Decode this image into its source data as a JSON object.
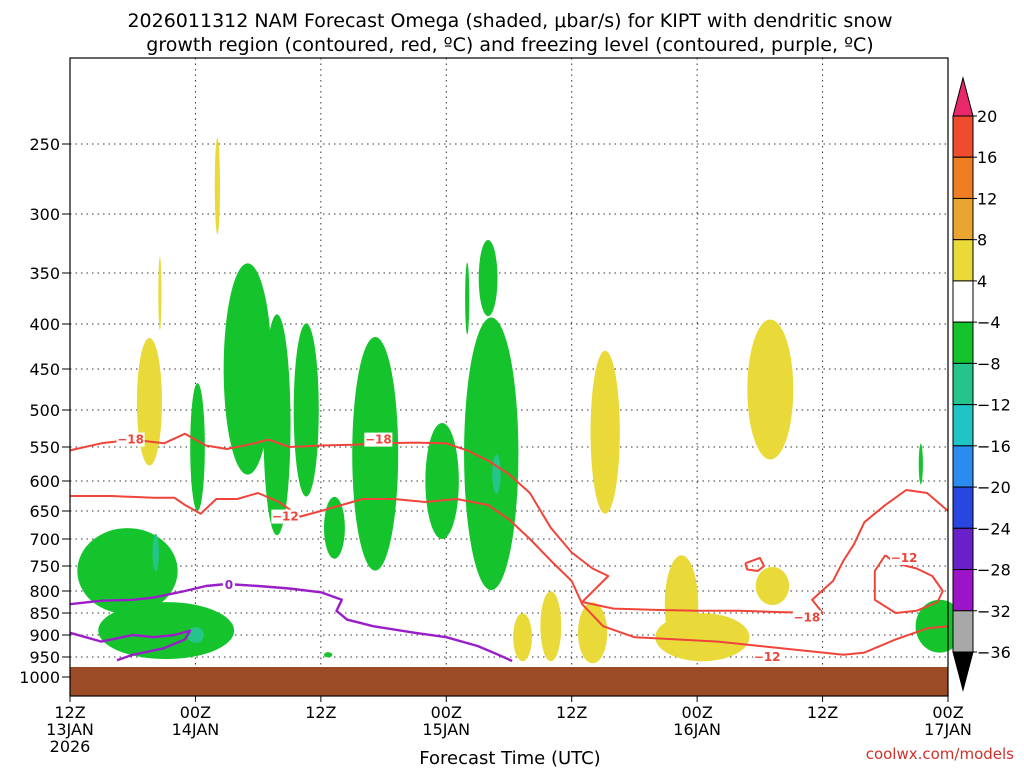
{
  "chart_data": {
    "type": "time-height cross-section",
    "title_line1": "2026011312 NAM Forecast Omega (shaded, μbar/s) for KIPT with dendritic snow",
    "title_line2": "growth region (contoured, red, ºC) and freezing level (contoured, purple, ºC)",
    "xlabel": "Forecast Time (UTC)",
    "credit": "coolwx.com/models",
    "y_ticks": [
      250,
      300,
      350,
      400,
      450,
      500,
      550,
      600,
      650,
      700,
      750,
      800,
      850,
      900,
      950,
      1000
    ],
    "ylim": [
      200,
      1000
    ],
    "x_ticks": [
      {
        "hour": 0,
        "lines": [
          "12Z",
          "13JAN",
          "2026"
        ]
      },
      {
        "hour": 12,
        "lines": [
          "00Z",
          "14JAN"
        ]
      },
      {
        "hour": 24,
        "lines": [
          "12Z"
        ]
      },
      {
        "hour": 36,
        "lines": [
          "00Z",
          "15JAN"
        ]
      },
      {
        "hour": 48,
        "lines": [
          "12Z"
        ]
      },
      {
        "hour": 60,
        "lines": [
          "00Z",
          "16JAN"
        ]
      },
      {
        "hour": 72,
        "lines": [
          "12Z"
        ]
      },
      {
        "hour": 84,
        "lines": [
          "00Z",
          "17JAN"
        ]
      }
    ],
    "xlim": [
      0,
      84
    ],
    "ground_pressure": 975,
    "ground_color": "#9b4c26",
    "colorbar": {
      "labels": [
        "20",
        "16",
        "12",
        "8",
        "4",
        "−4",
        "−8",
        "−12",
        "−16",
        "−20",
        "−24",
        "−28",
        "−32",
        "−36"
      ],
      "bins": [
        "#e8286a",
        "#ef4b2f",
        "#ef7d22",
        "#e8a531",
        "#e9da3a",
        "#ffffff",
        "#15c42d",
        "#25c48a",
        "#20c4c4",
        "#2a8cee",
        "#2846e0",
        "#6a20c8",
        "#9b14c8",
        "#a8a8a8",
        "#000000"
      ]
    },
    "omega_regions": [
      {
        "color": "#15c42d",
        "cx": 12.2,
        "cy": 550,
        "rx": 0.7,
        "ry": 90
      },
      {
        "color": "#15c42d",
        "cx": 17.0,
        "cy": 450,
        "rx": 2.3,
        "ry": 120
      },
      {
        "color": "#15c42d",
        "cx": 19.8,
        "cy": 520,
        "rx": 1.3,
        "ry": 145
      },
      {
        "color": "#15c42d",
        "cx": 22.6,
        "cy": 500,
        "rx": 1.2,
        "ry": 110
      },
      {
        "color": "#15c42d",
        "cx": 25.3,
        "cy": 680,
        "rx": 1.0,
        "ry": 55
      },
      {
        "color": "#15c42d",
        "cx": 29.2,
        "cy": 560,
        "rx": 2.2,
        "ry": 165
      },
      {
        "color": "#15c42d",
        "cx": 35.6,
        "cy": 600,
        "rx": 1.6,
        "ry": 90
      },
      {
        "color": "#15c42d",
        "cx": 40.3,
        "cy": 560,
        "rx": 2.6,
        "ry": 190
      },
      {
        "color": "#15c42d",
        "cx": 38.0,
        "cy": 375,
        "rx": 0.2,
        "ry": 35
      },
      {
        "color": "#15c42d",
        "cx": 40.0,
        "cy": 355,
        "rx": 0.9,
        "ry": 35
      },
      {
        "color": "#15c42d",
        "cx": 5.5,
        "cy": 760,
        "rx": 4.8,
        "ry": 85
      },
      {
        "color": "#15c42d",
        "cx": 9.2,
        "cy": 890,
        "rx": 6.5,
        "ry": 65
      },
      {
        "color": "#15c42d",
        "cx": 83.2,
        "cy": 880,
        "rx": 2.3,
        "ry": 60
      },
      {
        "color": "#15c42d",
        "cx": 81.4,
        "cy": 575,
        "rx": 0.2,
        "ry": 30
      },
      {
        "color": "#15c42d",
        "cx": 24.7,
        "cy": 945,
        "rx": 0.4,
        "ry": 6
      },
      {
        "color": "#25c48a",
        "cx": 8.2,
        "cy": 725,
        "rx": 0.3,
        "ry": 35
      },
      {
        "color": "#25c48a",
        "cx": 40.8,
        "cy": 590,
        "rx": 0.4,
        "ry": 30
      },
      {
        "color": "#25c48a",
        "cx": 12.0,
        "cy": 900,
        "rx": 0.8,
        "ry": 18
      },
      {
        "color": "#e9da3a",
        "cx": 7.6,
        "cy": 490,
        "rx": 1.2,
        "ry": 80
      },
      {
        "color": "#e9da3a",
        "cx": 8.6,
        "cy": 370,
        "rx": 0.15,
        "ry": 35
      },
      {
        "color": "#e9da3a",
        "cx": 14.1,
        "cy": 280,
        "rx": 0.25,
        "ry": 35
      },
      {
        "color": "#e9da3a",
        "cx": 51.2,
        "cy": 530,
        "rx": 1.4,
        "ry": 110
      },
      {
        "color": "#e9da3a",
        "cx": 67.0,
        "cy": 475,
        "rx": 2.2,
        "ry": 85
      },
      {
        "color": "#e9da3a",
        "cx": 43.3,
        "cy": 905,
        "rx": 0.9,
        "ry": 55
      },
      {
        "color": "#e9da3a",
        "cx": 46.0,
        "cy": 880,
        "rx": 1.0,
        "ry": 80
      },
      {
        "color": "#e9da3a",
        "cx": 50.0,
        "cy": 895,
        "rx": 1.4,
        "ry": 70
      },
      {
        "color": "#e9da3a",
        "cx": 58.5,
        "cy": 830,
        "rx": 1.6,
        "ry": 105
      },
      {
        "color": "#e9da3a",
        "cx": 60.5,
        "cy": 905,
        "rx": 4.5,
        "ry": 55
      },
      {
        "color": "#e9da3a",
        "cx": 67.2,
        "cy": 790,
        "rx": 1.6,
        "ry": 40
      }
    ],
    "red_isotherms": [
      {
        "label": "−18",
        "points": [
          [
            0,
            555
          ],
          [
            3,
            545
          ],
          [
            6,
            540
          ],
          [
            9,
            545
          ],
          [
            11,
            532
          ],
          [
            13,
            548
          ],
          [
            15,
            553
          ],
          [
            17,
            547
          ],
          [
            19,
            540
          ],
          [
            21,
            550
          ],
          [
            24,
            548
          ],
          [
            27,
            547
          ],
          [
            30,
            545
          ],
          [
            33,
            544
          ],
          [
            36,
            545
          ],
          [
            38,
            555
          ],
          [
            40,
            570
          ],
          [
            42,
            590
          ],
          [
            44,
            620
          ],
          [
            46,
            680
          ],
          [
            48,
            725
          ],
          [
            50,
            755
          ],
          [
            51.5,
            770
          ],
          [
            49,
            825
          ],
          [
            52,
            840
          ],
          [
            56,
            843
          ],
          [
            60,
            845
          ],
          [
            64,
            845
          ],
          [
            68,
            848
          ],
          [
            72,
            850
          ]
        ],
        "label_at": [
          5.8,
          540
        ]
      },
      {
        "label": "−12",
        "points": [
          [
            0,
            625
          ],
          [
            4,
            625
          ],
          [
            8,
            628
          ],
          [
            10,
            628
          ],
          [
            11,
            640
          ],
          [
            12.5,
            655
          ],
          [
            14,
            630
          ],
          [
            16,
            630
          ],
          [
            18,
            620
          ],
          [
            20,
            635
          ],
          [
            22,
            660
          ],
          [
            24,
            650
          ],
          [
            26,
            640
          ],
          [
            28,
            630
          ],
          [
            31,
            630
          ],
          [
            34,
            635
          ],
          [
            37,
            630
          ],
          [
            40,
            640
          ],
          [
            42,
            665
          ],
          [
            44,
            700
          ],
          [
            46,
            740
          ],
          [
            48,
            780
          ],
          [
            49,
            830
          ],
          [
            51,
            880
          ],
          [
            54,
            905
          ],
          [
            58,
            910
          ],
          [
            62,
            915
          ],
          [
            66,
            925
          ],
          [
            70,
            935
          ],
          [
            74,
            945
          ],
          [
            76,
            940
          ],
          [
            79,
            910
          ],
          [
            82,
            885
          ],
          [
            84,
            880
          ]
        ],
        "label_at": [
          21,
          660
        ]
      },
      {
        "label": "−12",
        "points": [
          [
            72,
            850
          ],
          [
            71,
            820
          ],
          [
            73,
            780
          ],
          [
            74,
            740
          ],
          [
            75,
            710
          ],
          [
            76,
            670
          ],
          [
            78,
            640
          ],
          [
            80,
            615
          ],
          [
            82,
            620
          ],
          [
            84,
            650
          ]
        ],
        "label_at": null
      },
      {
        "label": "−12",
        "points": [
          [
            78,
            730
          ],
          [
            77,
            760
          ],
          [
            77,
            820
          ],
          [
            79,
            850
          ],
          [
            81,
            845
          ],
          [
            83,
            825
          ],
          [
            83.5,
            800
          ],
          [
            82.5,
            770
          ],
          [
            81,
            755
          ],
          [
            79,
            745
          ],
          [
            78,
            730
          ]
        ],
        "label_at": [
          79.5,
          735
        ]
      },
      {
        "label": "",
        "points": [
          [
            64.6,
            745
          ],
          [
            66.0,
            735
          ],
          [
            66.4,
            750
          ],
          [
            65.8,
            760
          ],
          [
            64.8,
            757
          ],
          [
            64.6,
            745
          ]
        ],
        "label_at": null
      }
    ],
    "red_labels": [
      {
        "text": "−18",
        "hour": 5.8,
        "p": 540
      },
      {
        "text": "−18",
        "hour": 29.5,
        "p": 540
      },
      {
        "text": "−12",
        "hour": 20.6,
        "p": 660
      },
      {
        "text": "−18",
        "hour": 70.5,
        "p": 860
      },
      {
        "text": "−12",
        "hour": 66.7,
        "p": 950
      },
      {
        "text": "−12",
        "hour": 79.8,
        "p": 735
      }
    ],
    "purple_isotherms": [
      {
        "label": "0",
        "points": [
          [
            0,
            830
          ],
          [
            3,
            822
          ],
          [
            6,
            820
          ],
          [
            8,
            815
          ],
          [
            10,
            805
          ],
          [
            11,
            800
          ],
          [
            13,
            790
          ],
          [
            15,
            786
          ],
          [
            18,
            790
          ],
          [
            21,
            795
          ],
          [
            24,
            803
          ],
          [
            26,
            820
          ],
          [
            25.5,
            845
          ],
          [
            26.5,
            865
          ],
          [
            29,
            880
          ],
          [
            33,
            895
          ],
          [
            36,
            905
          ],
          [
            39,
            925
          ],
          [
            41,
            945
          ],
          [
            42.3,
            960
          ]
        ],
        "label_at": [
          15.2,
          788
        ]
      },
      {
        "label": "",
        "points": [
          [
            0,
            895
          ],
          [
            3,
            915
          ],
          [
            6,
            900
          ],
          [
            8,
            905
          ],
          [
            10,
            900
          ],
          [
            11.5,
            890
          ],
          [
            11,
            910
          ],
          [
            9,
            930
          ],
          [
            6,
            945
          ],
          [
            4.5,
            958
          ]
        ],
        "label_at": null
      }
    ],
    "purple_labels": [
      {
        "text": "0",
        "hour": 15.2,
        "p": 788
      }
    ]
  }
}
